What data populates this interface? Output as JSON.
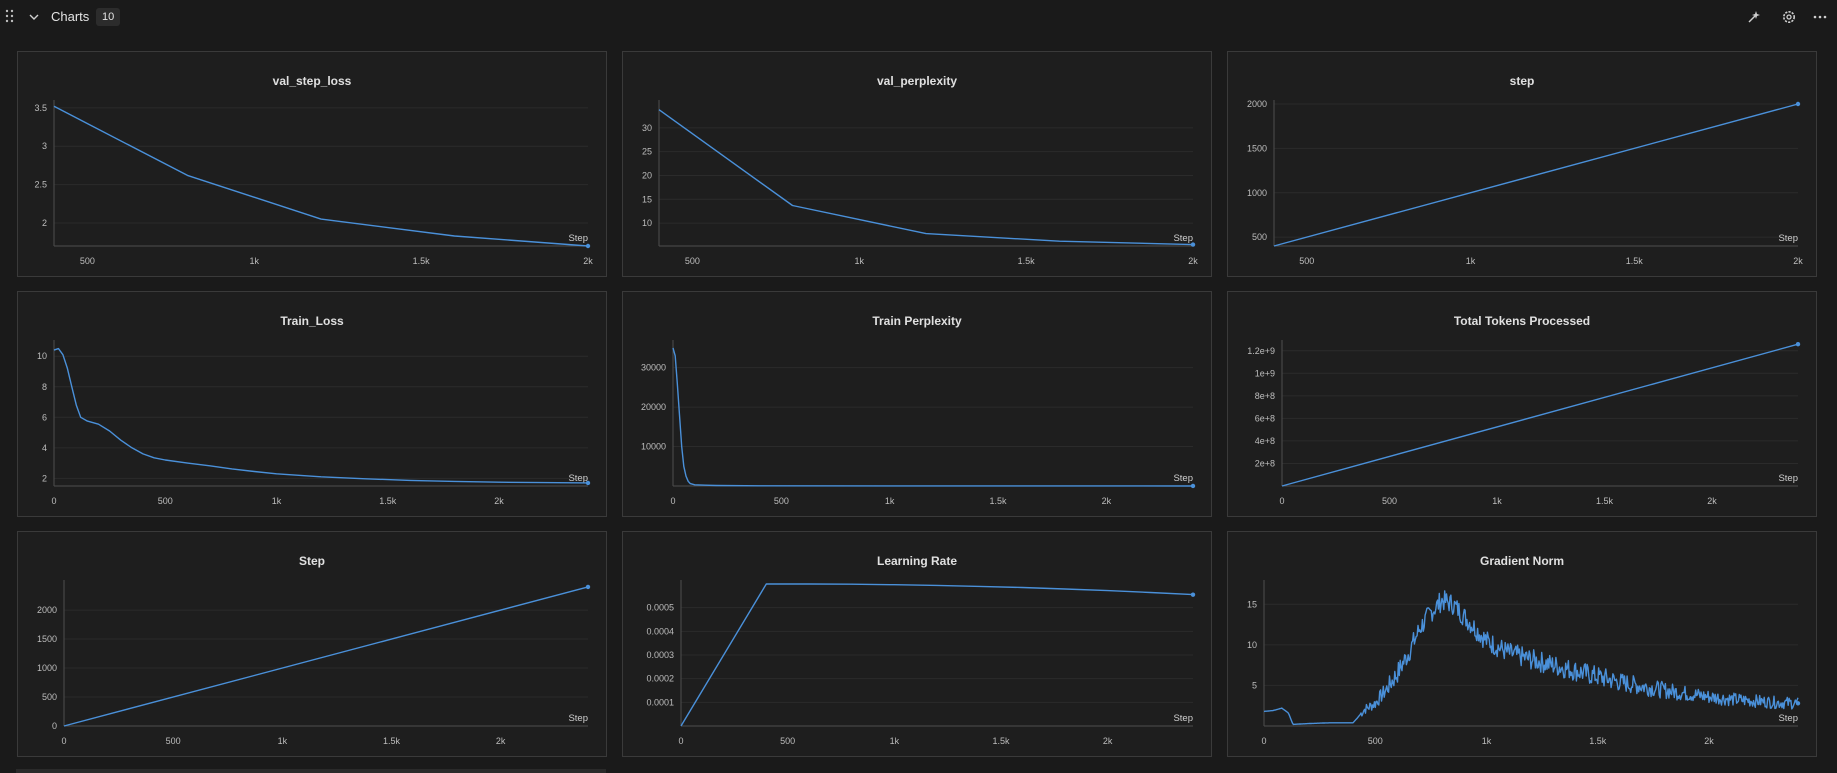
{
  "section": {
    "title": "Charts",
    "count": "10"
  },
  "toolbar_icons": [
    "sparkle-icon",
    "gear-icon",
    "more-horizontal-icon"
  ],
  "colors": {
    "background": "#1a1a1a",
    "panel": "#1e1e1e",
    "line": "#4a90d9",
    "grid": "#2b2b2b"
  },
  "chart_data": [
    {
      "title": "val_step_loss",
      "type": "line",
      "xlabel": "Step",
      "xlim": [
        400,
        2000
      ],
      "ylim": [
        1.7,
        3.55
      ],
      "xticks": [
        {
          "v": 500,
          "t": "500"
        },
        {
          "v": 1000,
          "t": "1k"
        },
        {
          "v": 1500,
          "t": "1.5k"
        },
        {
          "v": 2000,
          "t": "2k"
        }
      ],
      "yticks": [
        {
          "v": 2,
          "t": "2"
        },
        {
          "v": 2.5,
          "t": "2.5"
        },
        {
          "v": 3,
          "t": "3"
        },
        {
          "v": 3.5,
          "t": "3.5"
        }
      ],
      "x": [
        400,
        800,
        1200,
        1600,
        2000
      ],
      "y": [
        3.52,
        2.62,
        2.05,
        1.83,
        1.7
      ]
    },
    {
      "title": "val_perplexity",
      "type": "line",
      "xlabel": "Step",
      "xlim": [
        400,
        2000
      ],
      "ylim": [
        5.2,
        35
      ],
      "xticks": [
        {
          "v": 500,
          "t": "500"
        },
        {
          "v": 1000,
          "t": "1k"
        },
        {
          "v": 1500,
          "t": "1.5k"
        },
        {
          "v": 2000,
          "t": "2k"
        }
      ],
      "yticks": [
        {
          "v": 10,
          "t": "10"
        },
        {
          "v": 15,
          "t": "15"
        },
        {
          "v": 20,
          "t": "20"
        },
        {
          "v": 25,
          "t": "25"
        },
        {
          "v": 30,
          "t": "30"
        }
      ],
      "x": [
        400,
        800,
        1200,
        1600,
        2000
      ],
      "y": [
        33.8,
        13.7,
        7.8,
        6.2,
        5.5
      ]
    },
    {
      "title": "step",
      "type": "line",
      "xlabel": "Step",
      "xlim": [
        400,
        2000
      ],
      "ylim": [
        400,
        2000
      ],
      "xticks": [
        {
          "v": 500,
          "t": "500"
        },
        {
          "v": 1000,
          "t": "1k"
        },
        {
          "v": 1500,
          "t": "1.5k"
        },
        {
          "v": 2000,
          "t": "2k"
        }
      ],
      "yticks": [
        {
          "v": 500,
          "t": "500"
        },
        {
          "v": 1000,
          "t": "1000"
        },
        {
          "v": 1500,
          "t": "1500"
        },
        {
          "v": 2000,
          "t": "2000"
        }
      ],
      "x": [
        400,
        2000
      ],
      "y": [
        400,
        2000
      ]
    },
    {
      "title": "Train_Loss",
      "type": "line",
      "xlabel": "Step",
      "xlim": [
        0,
        2400
      ],
      "ylim": [
        1.5,
        10.8
      ],
      "xticks": [
        {
          "v": 0,
          "t": "0"
        },
        {
          "v": 500,
          "t": "500"
        },
        {
          "v": 1000,
          "t": "1k"
        },
        {
          "v": 1500,
          "t": "1.5k"
        },
        {
          "v": 2000,
          "t": "2k"
        }
      ],
      "yticks": [
        {
          "v": 2,
          "t": "2"
        },
        {
          "v": 4,
          "t": "4"
        },
        {
          "v": 6,
          "t": "6"
        },
        {
          "v": 8,
          "t": "8"
        },
        {
          "v": 10,
          "t": "10"
        }
      ],
      "x": [
        0,
        20,
        40,
        60,
        80,
        100,
        120,
        150,
        200,
        250,
        300,
        350,
        400,
        450,
        500,
        600,
        700,
        800,
        900,
        1000,
        1200,
        1400,
        1600,
        1800,
        2000,
        2200,
        2400
      ],
      "y": [
        10.4,
        10.5,
        10.1,
        9.2,
        8.0,
        6.8,
        6.0,
        5.75,
        5.55,
        5.1,
        4.5,
        4.0,
        3.6,
        3.35,
        3.2,
        3.0,
        2.82,
        2.62,
        2.45,
        2.3,
        2.1,
        1.97,
        1.87,
        1.8,
        1.75,
        1.72,
        1.7
      ]
    },
    {
      "title": "Train Perplexity",
      "type": "line",
      "xlabel": "Step",
      "xlim": [
        0,
        2400
      ],
      "ylim": [
        0,
        36000
      ],
      "xticks": [
        {
          "v": 0,
          "t": "0"
        },
        {
          "v": 500,
          "t": "500"
        },
        {
          "v": 1000,
          "t": "1k"
        },
        {
          "v": 1500,
          "t": "1.5k"
        },
        {
          "v": 2000,
          "t": "2k"
        }
      ],
      "yticks": [
        {
          "v": 10000,
          "t": "10000"
        },
        {
          "v": 20000,
          "t": "20000"
        },
        {
          "v": 30000,
          "t": "30000"
        }
      ],
      "x": [
        0,
        10,
        20,
        30,
        40,
        50,
        60,
        70,
        80,
        100,
        150,
        200,
        400,
        1000,
        2400
      ],
      "y": [
        35000,
        33000,
        26000,
        18000,
        10000,
        5000,
        2500,
        1200,
        600,
        300,
        200,
        120,
        50,
        20,
        10
      ]
    },
    {
      "title": "Total Tokens Processed",
      "type": "line",
      "xlabel": "Step",
      "xlim": [
        0,
        2400
      ],
      "ylim": [
        0,
        1260000000
      ],
      "xticks": [
        {
          "v": 0,
          "t": "0"
        },
        {
          "v": 500,
          "t": "500"
        },
        {
          "v": 1000,
          "t": "1k"
        },
        {
          "v": 1500,
          "t": "1.5k"
        },
        {
          "v": 2000,
          "t": "2k"
        }
      ],
      "yticks": [
        {
          "v": 200000000,
          "t": "2e+8"
        },
        {
          "v": 400000000,
          "t": "4e+8"
        },
        {
          "v": 600000000,
          "t": "6e+8"
        },
        {
          "v": 800000000,
          "t": "8e+8"
        },
        {
          "v": 1000000000,
          "t": "1e+9"
        },
        {
          "v": 1200000000,
          "t": "1.2e+9"
        }
      ],
      "x": [
        0,
        2400
      ],
      "y": [
        0,
        1258000000
      ]
    },
    {
      "title": "Step",
      "type": "line",
      "xlabel": "Step",
      "xlim": [
        0,
        2400
      ],
      "ylim": [
        0,
        2450
      ],
      "xticks": [
        {
          "v": 0,
          "t": "0"
        },
        {
          "v": 500,
          "t": "500"
        },
        {
          "v": 1000,
          "t": "1k"
        },
        {
          "v": 1500,
          "t": "1.5k"
        },
        {
          "v": 2000,
          "t": "2k"
        }
      ],
      "yticks": [
        {
          "v": 0,
          "t": "0"
        },
        {
          "v": 500,
          "t": "500"
        },
        {
          "v": 1000,
          "t": "1000"
        },
        {
          "v": 1500,
          "t": "1500"
        },
        {
          "v": 2000,
          "t": "2000"
        }
      ],
      "x": [
        0,
        2400
      ],
      "y": [
        0,
        2400
      ]
    },
    {
      "title": "Learning Rate",
      "type": "line",
      "xlabel": "Step",
      "xlim": [
        0,
        2400
      ],
      "ylim": [
        0,
        0.0006
      ],
      "xticks": [
        {
          "v": 0,
          "t": "0"
        },
        {
          "v": 500,
          "t": "500"
        },
        {
          "v": 1000,
          "t": "1k"
        },
        {
          "v": 1500,
          "t": "1.5k"
        },
        {
          "v": 2000,
          "t": "2k"
        }
      ],
      "yticks": [
        {
          "v": 0.0001,
          "t": "0.0001"
        },
        {
          "v": 0.0002,
          "t": "0.0002"
        },
        {
          "v": 0.0003,
          "t": "0.0003"
        },
        {
          "v": 0.0004,
          "t": "0.0004"
        },
        {
          "v": 0.0005,
          "t": "0.0005"
        }
      ],
      "x": [
        0,
        400,
        600,
        800,
        1000,
        1200,
        1400,
        1600,
        1800,
        2000,
        2200,
        2400
      ],
      "y": [
        0,
        0.0006,
        0.0006,
        0.000599,
        0.000597,
        0.000594,
        0.00059,
        0.000585,
        0.000579,
        0.000572,
        0.000564,
        0.000555
      ]
    },
    {
      "title": "Gradient Norm",
      "type": "line",
      "xlabel": "Step",
      "xlim": [
        0,
        2400
      ],
      "ylim": [
        0,
        17.5
      ],
      "xticks": [
        {
          "v": 0,
          "t": "0"
        },
        {
          "v": 500,
          "t": "500"
        },
        {
          "v": 1000,
          "t": "1k"
        },
        {
          "v": 1500,
          "t": "1.5k"
        },
        {
          "v": 2000,
          "t": "2k"
        }
      ],
      "yticks": [
        {
          "v": 5,
          "t": "5"
        },
        {
          "v": 10,
          "t": "10"
        },
        {
          "v": 15,
          "t": "15"
        }
      ],
      "x": [
        0,
        40,
        80,
        110,
        130,
        200,
        300,
        400,
        420,
        450,
        500,
        550,
        600,
        650,
        700,
        750,
        800,
        850,
        900,
        950,
        1000,
        1100,
        1200,
        1300,
        1400,
        1500,
        1600,
        1700,
        1800,
        1900,
        2000,
        2100,
        2200,
        2300,
        2400
      ],
      "y": [
        1.8,
        1.9,
        2.2,
        1.6,
        0.2,
        0.3,
        0.4,
        0.4,
        1.0,
        2.0,
        2.8,
        4.5,
        6.5,
        9.0,
        12.0,
        14.0,
        15.5,
        15.0,
        13.5,
        12.0,
        10.5,
        9.0,
        8.2,
        7.5,
        6.8,
        6.1,
        5.4,
        4.9,
        4.4,
        4.0,
        3.6,
        3.3,
        3.1,
        2.9,
        2.8
      ]
    }
  ]
}
